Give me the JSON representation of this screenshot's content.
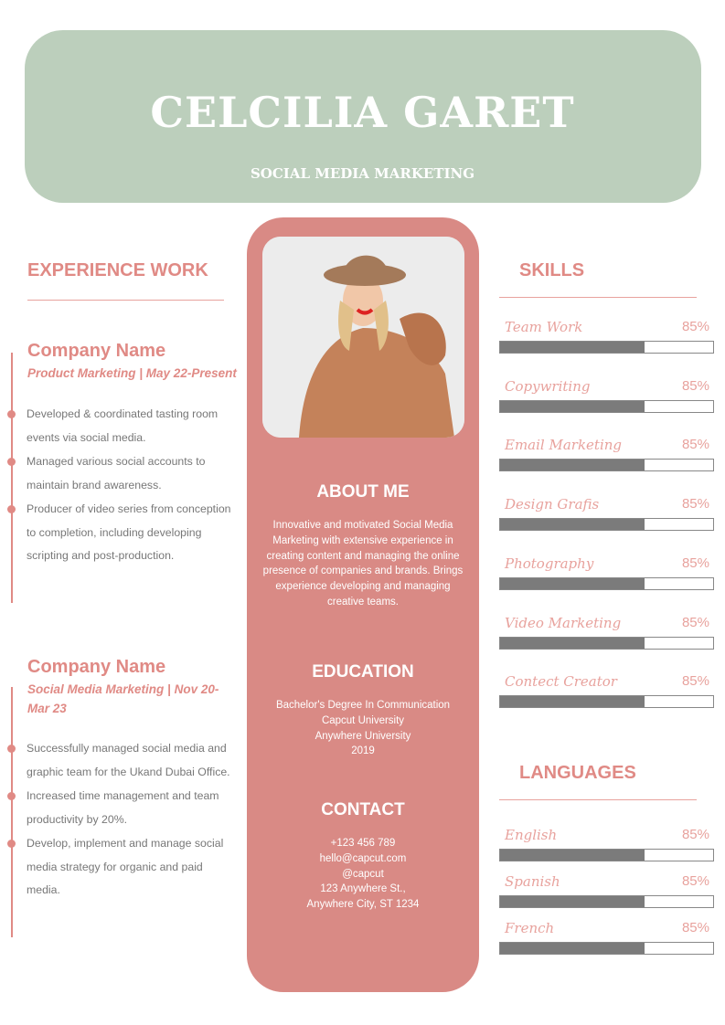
{
  "header": {
    "name": "CELCILIA GARET",
    "role": "SOCIAL MEDIA MARKETING"
  },
  "colors": {
    "header_bg": "#bccfbc",
    "accent": "#d98a85",
    "text_accent": "#e08a85",
    "bar": "#7b7b7b"
  },
  "experience": {
    "title": "EXPERIENCE WORK",
    "jobs": [
      {
        "company": "Company Name",
        "subtitle": "Product Marketing | May 22-Present",
        "bullets": [
          "Developed & coordinated tasting room events via social media.",
          "Managed various social accounts to maintain brand awareness.",
          "Producer of video series from conception to completion, including developing scripting and post-production."
        ]
      },
      {
        "company": "Company Name",
        "subtitle": "Social Media Marketing | Nov 20-Mar 23",
        "bullets": [
          "Successfully managed social media and graphic team for the Ukand Dubai Office.",
          "Increased time management and team productivity by 20%.",
          "Develop, implement and manage social media strategy for organic and paid media."
        ]
      }
    ]
  },
  "about": {
    "title": "ABOUT ME",
    "text": "Innovative and motivated Social Media Marketing with extensive experience in creating content and managing the online presence of companies and brands. Brings experience developing and managing creative teams."
  },
  "education": {
    "title": "EDUCATION",
    "lines": [
      "Bachelor's Degree In Communication",
      "Capcut University",
      "Anywhere University",
      "2019"
    ]
  },
  "contact": {
    "title": "CONTACT",
    "lines": [
      "+123  456 789",
      "hello@capcut.com",
      "@capcut",
      "123 Anywhere St.,",
      "Anywhere City, ST 1234"
    ]
  },
  "skills": {
    "title": "SKILLS",
    "items": [
      {
        "label": "Team Work",
        "percent": "85%",
        "fill": 0.68
      },
      {
        "label": "Copywriting",
        "percent": "85%",
        "fill": 0.68
      },
      {
        "label": "Email Marketing",
        "percent": "85%",
        "fill": 0.68
      },
      {
        "label": "Design Grafis",
        "percent": "85%",
        "fill": 0.68
      },
      {
        "label": "Photography",
        "percent": "85%",
        "fill": 0.68
      },
      {
        "label": "Video Marketing",
        "percent": "85%",
        "fill": 0.68
      },
      {
        "label": "Contect Creator",
        "percent": "85%",
        "fill": 0.68
      }
    ]
  },
  "languages": {
    "title": "LANGUAGES",
    "items": [
      {
        "label": "English",
        "percent": "85%",
        "fill": 0.68
      },
      {
        "label": "Spanish",
        "percent": "85%",
        "fill": 0.68
      },
      {
        "label": "French",
        "percent": "85%",
        "fill": 0.68
      }
    ]
  }
}
